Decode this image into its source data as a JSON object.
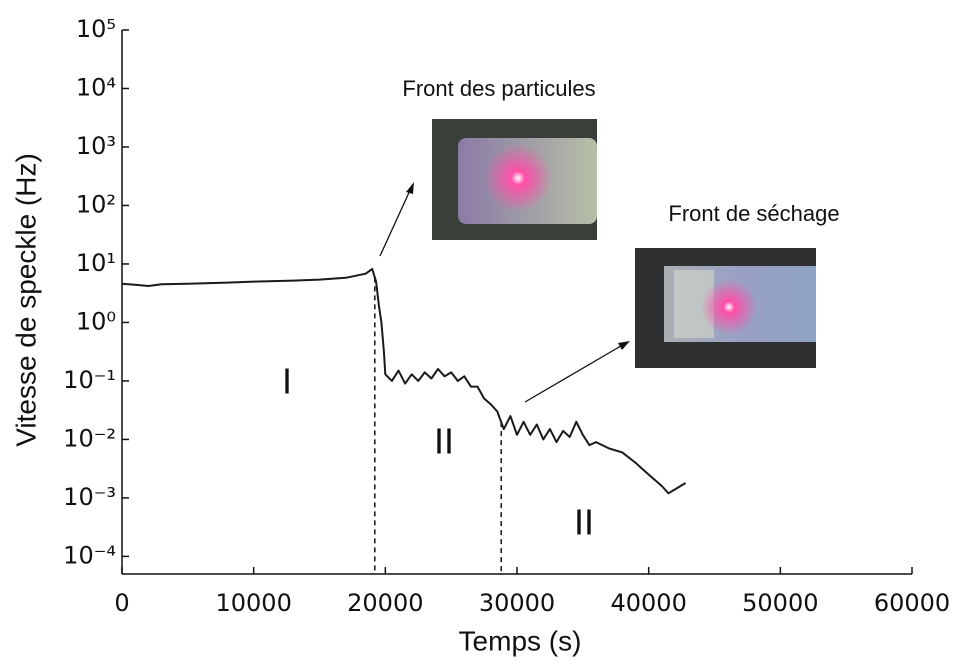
{
  "chart_data": {
    "type": "line",
    "x_label": "Temps (s)",
    "y_label": "Vitesse de speckle (Hz)",
    "y_log": true,
    "xlim": [
      0,
      60000
    ],
    "xticks": [
      0,
      10000,
      20000,
      30000,
      40000,
      50000,
      60000
    ],
    "ylim": [
      5e-05,
      100000
    ],
    "yticks": [
      {
        "value": 100000,
        "label": "10⁵"
      },
      {
        "value": 10000,
        "label": "10⁴"
      },
      {
        "value": 1000,
        "label": "10³"
      },
      {
        "value": 100,
        "label": "10²"
      },
      {
        "value": 10,
        "label": "10¹"
      },
      {
        "value": 1,
        "label": "10⁰"
      },
      {
        "value": 0.1,
        "label": "10⁻¹"
      },
      {
        "value": 0.01,
        "label": "10⁻²"
      },
      {
        "value": 0.001,
        "label": "10⁻³"
      },
      {
        "value": 0.0001,
        "label": "10⁻⁴"
      }
    ],
    "x": [
      0,
      1000,
      2000,
      3000,
      5000,
      8000,
      10000,
      13000,
      15000,
      17000,
      18500,
      19000,
      19300,
      19500,
      19700,
      19900,
      20000,
      20500,
      21000,
      21500,
      22000,
      22500,
      23000,
      23500,
      24000,
      24500,
      25000,
      25500,
      26000,
      26500,
      27000,
      27500,
      28000,
      28500,
      29000,
      29500,
      30000,
      30500,
      31000,
      31500,
      32000,
      32500,
      33000,
      33500,
      34000,
      34500,
      35000,
      35500,
      36000,
      37000,
      38000,
      39000,
      40000,
      41000,
      41500,
      42000,
      42800
    ],
    "series": [
      {
        "color": "#1a1a1a",
        "values": [
          4.6,
          4.4,
          4.2,
          4.5,
          4.6,
          4.8,
          5.0,
          5.2,
          5.4,
          5.8,
          6.8,
          8.2,
          5,
          2,
          1,
          0.3,
          0.13,
          0.1,
          0.15,
          0.09,
          0.13,
          0.1,
          0.14,
          0.11,
          0.16,
          0.12,
          0.14,
          0.1,
          0.12,
          0.08,
          0.08,
          0.05,
          0.04,
          0.03,
          0.015,
          0.025,
          0.012,
          0.02,
          0.012,
          0.018,
          0.01,
          0.015,
          0.009,
          0.014,
          0.011,
          0.02,
          0.012,
          0.008,
          0.009,
          0.007,
          0.006,
          0.004,
          0.0025,
          0.0016,
          0.0012,
          0.0014,
          0.0018
        ]
      }
    ],
    "boundaries": [
      19200,
      28800
    ],
    "annotations": [
      "I",
      "II",
      "II",
      "Front des particules",
      "Front de séchage"
    ]
  }
}
